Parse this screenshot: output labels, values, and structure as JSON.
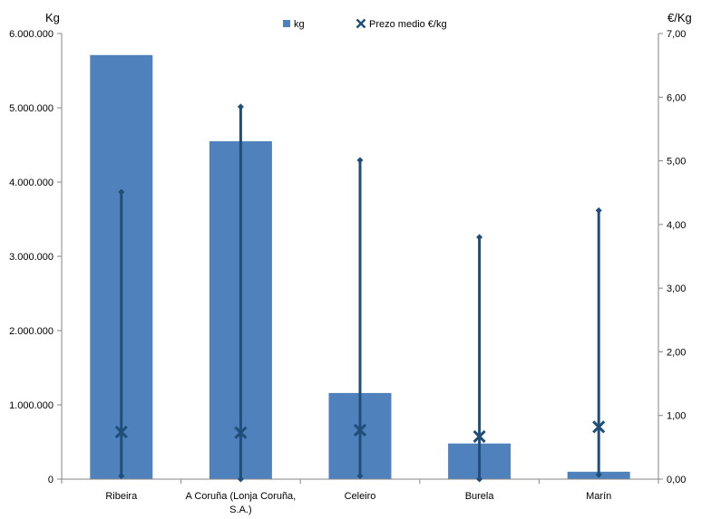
{
  "chart_data": {
    "type": "bar",
    "categories": [
      "Ribeira",
      "A Coruña (Lonja Coruña, S.A.)",
      "Celeiro",
      "Burela",
      "Marín"
    ],
    "category_lines": [
      [
        "Ribeira"
      ],
      [
        "A Coruña (Lonja Coruña,",
        "S.A.)"
      ],
      [
        "Celeiro"
      ],
      [
        "Burela"
      ],
      [
        "Marín"
      ]
    ],
    "series": [
      {
        "name": "kg",
        "kind": "bar",
        "axis": "left",
        "color": "#4F81BD",
        "values": [
          5710000,
          4550000,
          1160000,
          480000,
          100000
        ]
      },
      {
        "name": "Prezo medio €/kg",
        "kind": "high-low-marker",
        "axis": "right",
        "color": "#1F4E79",
        "values": [
          0.74,
          0.73,
          0.77,
          0.67,
          0.82
        ],
        "high": [
          4.51,
          5.85,
          5.01,
          3.8,
          4.22
        ],
        "low": [
          0.05,
          0.0,
          0.05,
          0.0,
          0.07
        ]
      }
    ],
    "y_left": {
      "label": "Kg",
      "ylim": [
        0,
        6000000
      ],
      "ticks": [
        0,
        1000000,
        2000000,
        3000000,
        4000000,
        5000000,
        6000000
      ],
      "tick_labels": [
        "0",
        "1.000.000",
        "2.000.000",
        "3.000.000",
        "4.000.000",
        "5.000.000",
        "6.000.000"
      ]
    },
    "y_right": {
      "label": "€/Kg",
      "ylim": [
        0,
        7
      ],
      "ticks": [
        0,
        1,
        2,
        3,
        4,
        5,
        6,
        7
      ],
      "tick_labels": [
        "0,00",
        "1,00",
        "2,00",
        "3,00",
        "4,00",
        "5,00",
        "6,00",
        "7,00"
      ]
    },
    "legend": {
      "position": "top",
      "items": [
        "kg",
        "Prezo medio €/kg"
      ]
    },
    "grid": false
  }
}
